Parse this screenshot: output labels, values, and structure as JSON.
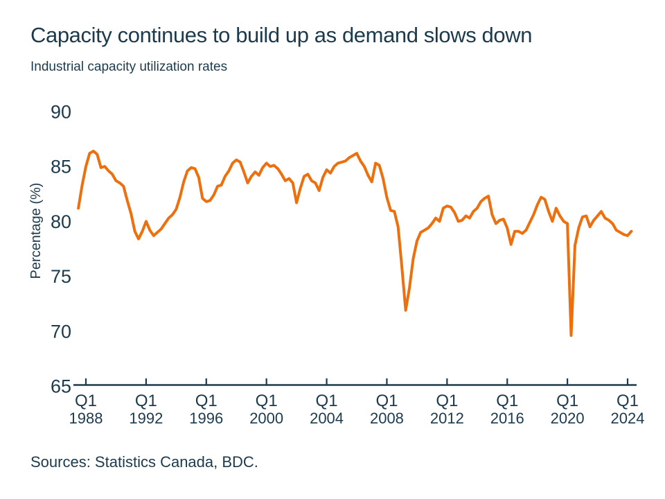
{
  "footer": {
    "source": "Sources: Statistics Canada, BDC."
  },
  "colors": {
    "accent_orange": "#EE6F0E",
    "navy_text": "#1D3A4D"
  },
  "chart_data": {
    "type": "line",
    "title": "Capacity continues to build up as demand slows down",
    "subtitle": "Industrial capacity utilization rates",
    "ylabel": "Percentage (%)",
    "ylim": [
      65,
      90
    ],
    "y_ticks": [
      90,
      85,
      80,
      75,
      70,
      65
    ],
    "x_ticks": [
      {
        "quarter": "Q1",
        "year": "1988"
      },
      {
        "quarter": "Q1",
        "year": "1992"
      },
      {
        "quarter": "Q1",
        "year": "1996"
      },
      {
        "quarter": "Q1",
        "year": "2000"
      },
      {
        "quarter": "Q1",
        "year": "2004"
      },
      {
        "quarter": "Q1",
        "year": "2008"
      },
      {
        "quarter": "Q1",
        "year": "2012"
      },
      {
        "quarter": "Q1",
        "year": "2016"
      },
      {
        "quarter": "Q1",
        "year": "2020"
      },
      {
        "quarter": "Q1",
        "year": "2024"
      }
    ],
    "grid": false,
    "legend": "none",
    "frequency": "quarterly",
    "x_start": "1987 Q3",
    "x_end": "2024 Q2",
    "series": [
      {
        "name": "Industrial capacity utilization rate",
        "color": "#EE6F0E",
        "values": [
          81.2,
          83.3,
          85.0,
          86.2,
          86.4,
          86.1,
          84.9,
          85.0,
          84.6,
          84.3,
          83.7,
          83.5,
          83.2,
          81.9,
          80.7,
          79.1,
          78.4,
          79.1,
          80.0,
          79.2,
          78.7,
          79.0,
          79.3,
          79.8,
          80.3,
          80.6,
          81.1,
          82.2,
          83.6,
          84.6,
          84.9,
          84.8,
          84.0,
          82.1,
          81.8,
          81.9,
          82.4,
          83.2,
          83.3,
          84.1,
          84.6,
          85.3,
          85.6,
          85.4,
          84.5,
          83.5,
          84.1,
          84.5,
          84.2,
          84.9,
          85.3,
          85.0,
          85.1,
          84.8,
          84.3,
          83.7,
          83.9,
          83.5,
          81.7,
          83.0,
          84.1,
          84.3,
          83.7,
          83.5,
          82.8,
          84.0,
          84.7,
          84.4,
          85.0,
          85.3,
          85.4,
          85.5,
          85.8,
          86.0,
          86.2,
          85.5,
          85.0,
          84.2,
          83.6,
          85.3,
          85.1,
          83.9,
          82.2,
          81.0,
          80.9,
          79.5,
          75.8,
          71.9,
          73.9,
          76.6,
          78.2,
          79.0,
          79.2,
          79.4,
          79.8,
          80.3,
          80.0,
          81.2,
          81.4,
          81.3,
          80.8,
          80.0,
          80.1,
          80.5,
          80.3,
          80.9,
          81.2,
          81.8,
          82.1,
          82.3,
          80.6,
          79.8,
          80.1,
          80.2,
          79.4,
          77.9,
          79.1,
          79.1,
          78.9,
          79.2,
          79.9,
          80.6,
          81.5,
          82.2,
          82.0,
          80.9,
          80.0,
          81.2,
          80.5,
          80.0,
          79.8,
          69.6,
          77.8,
          79.4,
          80.4,
          80.5,
          79.5,
          80.1,
          80.5,
          80.9,
          80.3,
          80.1,
          79.8,
          79.2,
          79.0,
          78.8,
          78.7,
          79.1
        ]
      }
    ]
  }
}
